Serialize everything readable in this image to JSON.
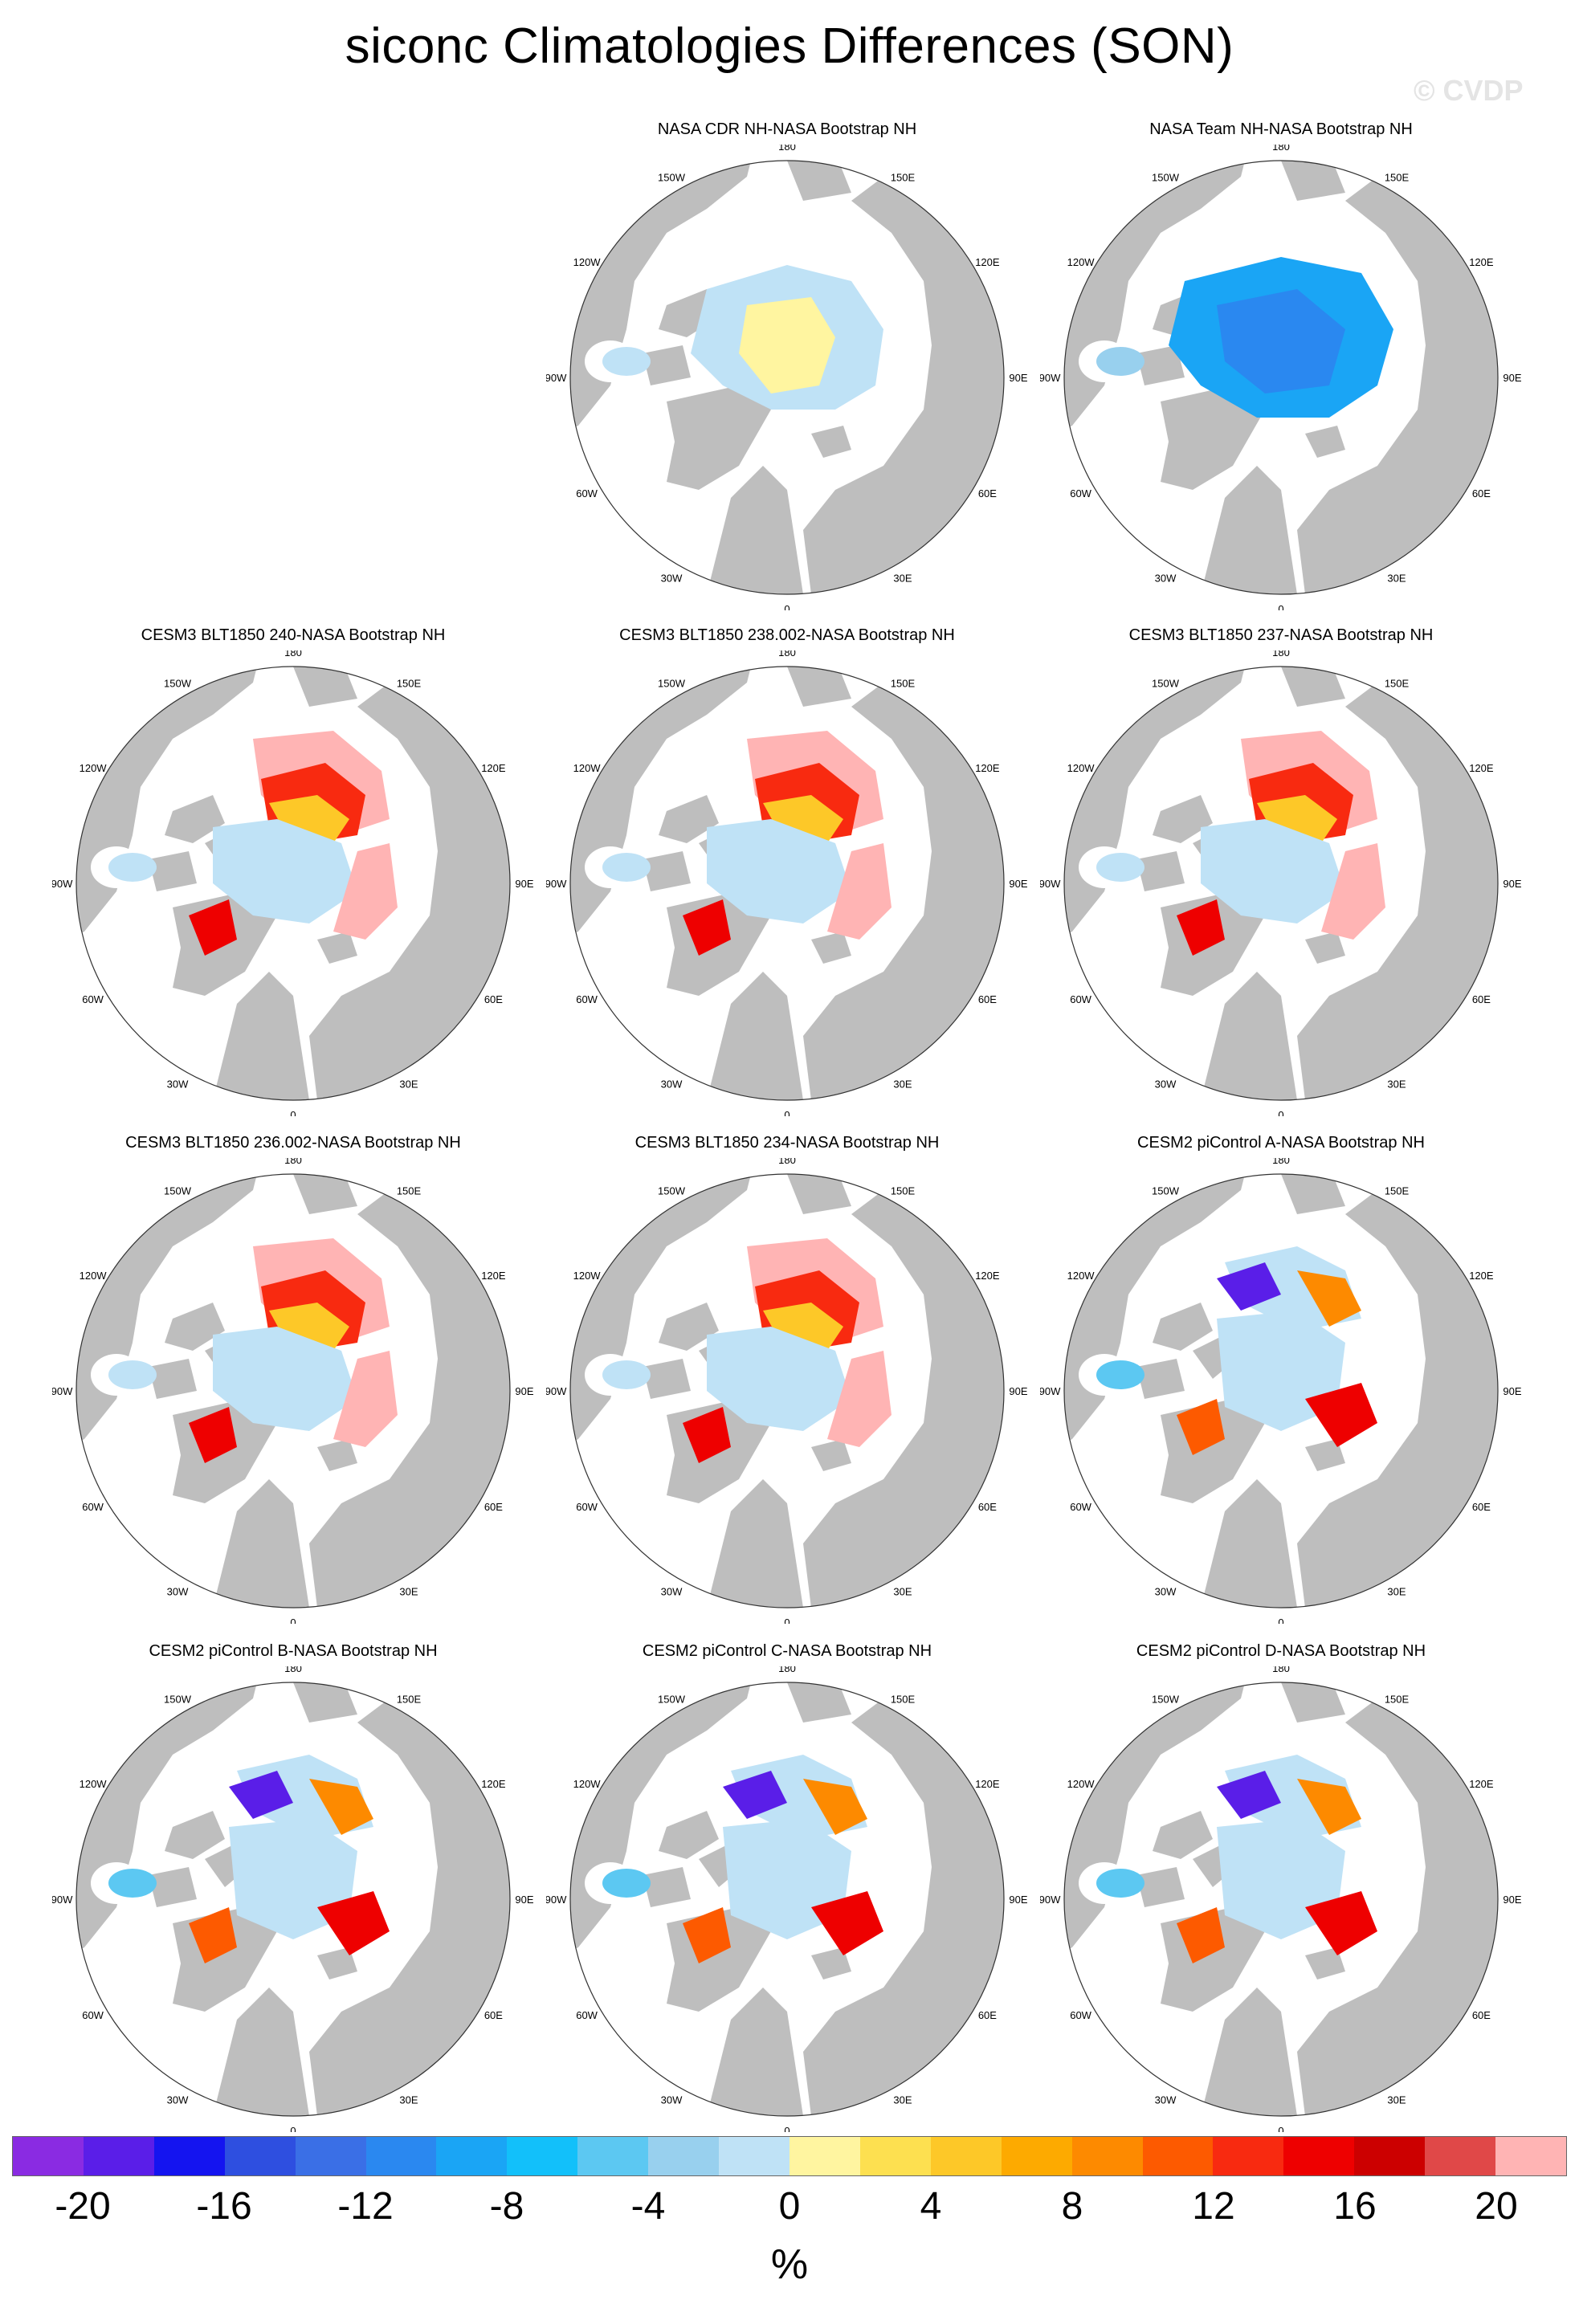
{
  "title": "siconc Climatologies Differences (SON)",
  "watermark": "© CVDP",
  "longitude_labels": [
    "180",
    "150E",
    "120E",
    "90E",
    "60E",
    "30E",
    "0",
    "30W",
    "60W",
    "90W",
    "120W",
    "150W"
  ],
  "panels": [
    {
      "title": "NASA CDR NH-NASA Bootstrap NH",
      "pattern": "cdr"
    },
    {
      "title": "NASA Team NH-NASA Bootstrap NH",
      "pattern": "team"
    },
    {
      "title": "CESM3 BLT1850 240-NASA Bootstrap NH",
      "pattern": "cesm3"
    },
    {
      "title": "CESM3 BLT1850 238.002-NASA Bootstrap NH",
      "pattern": "cesm3"
    },
    {
      "title": "CESM3 BLT1850 237-NASA Bootstrap NH",
      "pattern": "cesm3"
    },
    {
      "title": "CESM3 BLT1850 236.002-NASA Bootstrap NH",
      "pattern": "cesm3"
    },
    {
      "title": "CESM3 BLT1850 234-NASA Bootstrap NH",
      "pattern": "cesm3"
    },
    {
      "title": "CESM2 piControl A-NASA Bootstrap NH",
      "pattern": "cesm2"
    },
    {
      "title": "CESM2 piControl B-NASA Bootstrap NH",
      "pattern": "cesm2"
    },
    {
      "title": "CESM2 piControl C-NASA Bootstrap NH",
      "pattern": "cesm2"
    },
    {
      "title": "CESM2 piControl D-NASA Bootstrap NH",
      "pattern": "cesm2"
    }
  ],
  "colorbar": {
    "unit": "%",
    "tick_labels": [
      "-20",
      "-16",
      "-12",
      "-8",
      "-4",
      "0",
      "4",
      "8",
      "12",
      "16",
      "20"
    ],
    "colors": [
      "#8a2be2",
      "#5a1ee8",
      "#1414f0",
      "#2e4fe0",
      "#3a6fe6",
      "#2a88f0",
      "#1aa5f5",
      "#12c0fa",
      "#5cc8f2",
      "#98d0ee",
      "#bfe2f6",
      "#fff5a0",
      "#fde050",
      "#fdc828",
      "#fdaa00",
      "#fd8a00",
      "#fd5a00",
      "#f82a10",
      "#ee0000",
      "#cc0000",
      "#e04848",
      "#ffb4b4"
    ],
    "land_color": "#bebebe"
  }
}
